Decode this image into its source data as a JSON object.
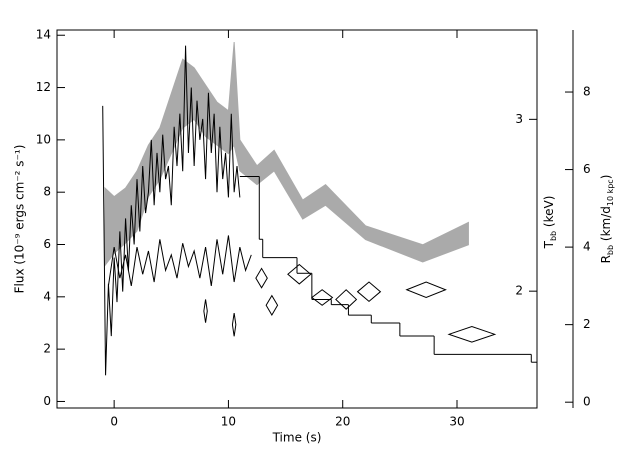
{
  "chart_data": {
    "type": "line",
    "xlabel": "Time (s)",
    "ylabel": "Flux (10⁻⁹ ergs cm⁻² s⁻¹)",
    "y2label": [
      {
        "text": "T"
      },
      {
        "text": "bb",
        "sub": true
      },
      {
        "text": " (keV)"
      }
    ],
    "y3label": [
      {
        "text": "R"
      },
      {
        "text": "bb",
        "sub": true
      },
      {
        "text": " (km/d"
      },
      {
        "text": "10 kpc",
        "sub": true
      },
      {
        "text": ")"
      }
    ],
    "xlim": [
      -5,
      37
    ],
    "xticks": [
      0,
      10,
      20,
      30
    ],
    "ylim": [
      -0.25,
      14.2
    ],
    "yticks": [
      0,
      2,
      4,
      6,
      8,
      10,
      12,
      14
    ],
    "y2lim": [
      1.32,
      3.52
    ],
    "y2ticks": [
      2,
      3
    ],
    "y3lim": [
      -0.15,
      9.6
    ],
    "y3ticks": [
      0,
      2,
      4,
      6,
      8
    ],
    "band": {
      "axis": "y2",
      "color": "#aaaaaa",
      "x": [
        -0.8,
        0,
        1,
        2,
        3,
        4,
        5,
        6,
        7,
        8,
        9,
        10,
        10.5,
        11,
        12.5,
        14,
        16.5,
        18.5,
        22,
        27,
        31
      ],
      "low": [
        2.15,
        2.22,
        2.28,
        2.35,
        2.55,
        2.65,
        2.8,
        2.95,
        3.0,
        2.9,
        2.85,
        2.8,
        2.85,
        2.7,
        2.62,
        2.7,
        2.42,
        2.5,
        2.3,
        2.17,
        2.27
      ],
      "high": [
        2.6,
        2.55,
        2.6,
        2.7,
        2.85,
        2.95,
        3.15,
        3.35,
        3.3,
        3.2,
        3.1,
        3.05,
        3.45,
        2.88,
        2.73,
        2.82,
        2.53,
        2.62,
        2.38,
        2.27,
        2.4
      ]
    },
    "series": [
      {
        "axis": "y",
        "color": "#000000",
        "x": [
          -1,
          -0.75,
          -0.5,
          -0.25,
          0,
          0.25,
          0.5,
          0.75,
          1,
          1.25,
          1.5,
          1.75,
          2,
          2.25,
          2.5,
          2.75,
          3,
          3.25,
          3.5,
          3.75,
          4,
          4.25,
          4.5,
          4.75,
          5,
          5.25,
          5.5,
          5.75,
          6,
          6.25,
          6.5,
          6.75,
          7,
          7.25,
          7.5,
          7.75,
          8,
          8.25,
          8.5,
          8.75,
          9,
          9.25,
          9.5,
          9.75,
          10,
          10.25,
          10.5,
          10.75,
          11
        ],
        "values": [
          11.3,
          1.0,
          4.5,
          2.5,
          5.5,
          3.8,
          6.5,
          4.2,
          7.0,
          5.0,
          7.5,
          6.0,
          8.5,
          6.5,
          9.0,
          7.2,
          8.0,
          10.0,
          7.5,
          9.5,
          8.0,
          10.2,
          8.5,
          9.0,
          7.5,
          10.5,
          9.0,
          11.0,
          8.8,
          13.6,
          9.5,
          12.0,
          9.0,
          11.5,
          10.0,
          10.8,
          8.5,
          11.8,
          9.5,
          11.0,
          8.0,
          10.5,
          8.5,
          9.5,
          7.8,
          11.0,
          8.0,
          9.0,
          7.8
        ]
      },
      {
        "axis": "y3",
        "color": "#000000",
        "x": [
          -0.5,
          0,
          0.5,
          1,
          1.5,
          2,
          2.5,
          3,
          3.5,
          4,
          4.5,
          5,
          5.5,
          6,
          6.5,
          7,
          7.5,
          8,
          8.5,
          9,
          9.5,
          10,
          10.5,
          11,
          11.5,
          12
        ],
        "values": [
          3.0,
          4.0,
          3.2,
          3.8,
          3.0,
          4.0,
          3.3,
          3.9,
          3.1,
          4.2,
          3.4,
          3.8,
          3.2,
          4.1,
          3.5,
          3.9,
          3.2,
          4.0,
          3.0,
          4.2,
          3.3,
          4.3,
          3.1,
          4.0,
          3.4,
          3.8
        ]
      }
    ],
    "step": {
      "axis": "y",
      "color": "#000000",
      "bins": [
        11,
        12.7,
        13,
        16,
        17.3,
        19,
        20.5,
        22.5,
        25,
        28,
        36.5,
        37
      ],
      "values": [
        8.6,
        6.2,
        5.5,
        4.9,
        3.9,
        3.7,
        3.3,
        3.0,
        2.5,
        1.8,
        1.5
      ]
    },
    "diamonds": {
      "axis": "y3",
      "color": "#000000",
      "x": [
        8.0,
        10.5,
        12.9,
        13.8,
        16.2,
        18.2,
        20.3,
        22.3,
        27.3,
        31.3
      ],
      "xerr": [
        0.15,
        0.15,
        0.5,
        0.5,
        1.0,
        0.9,
        0.9,
        1.0,
        1.7,
        2.0
      ],
      "values": [
        2.35,
        2.0,
        3.2,
        2.5,
        3.3,
        2.7,
        2.65,
        2.85,
        2.9,
        1.75
      ],
      "errors": [
        0.3,
        0.3,
        0.25,
        0.25,
        0.25,
        0.2,
        0.25,
        0.25,
        0.2,
        0.2
      ]
    }
  }
}
